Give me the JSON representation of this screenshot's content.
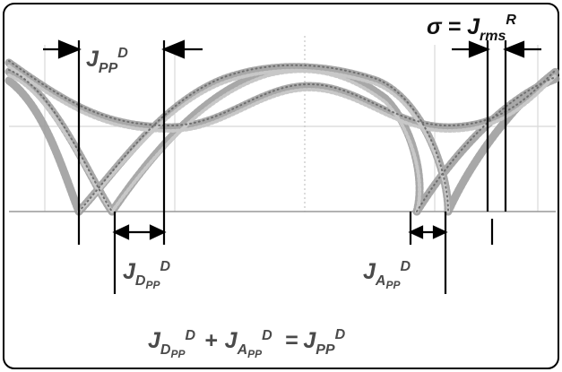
{
  "labels": {
    "jpp_top": {
      "main": "J",
      "sub": "PP",
      "sup": "D"
    },
    "sigma": {
      "lead": "σ = ",
      "main": "J",
      "sub": "rms",
      "sup": "R"
    },
    "jdpp": {
      "main": "J",
      "sub1": "D",
      "sub2": "PP",
      "sup": "D"
    },
    "japp": {
      "main": "J",
      "sub1": "A",
      "sub2": "PP",
      "sup": "D"
    },
    "equation": {
      "t1": {
        "main": "J",
        "sub1": "D",
        "sub2": "PP",
        "sup": "D"
      },
      "plus": "+",
      "t2": {
        "main": "J",
        "sub1": "A",
        "sub2": "PP",
        "sup": "D"
      },
      "equals": "=",
      "t3": {
        "main": "J",
        "sub": "PP",
        "sup": "D"
      }
    }
  },
  "colors": {
    "frame": "#000000",
    "grid": "#d6d6d6",
    "trace": "#8e8e8e",
    "trace_light": "#bdbdbd",
    "marker": "#000000",
    "text": "#4a4a4a"
  }
}
